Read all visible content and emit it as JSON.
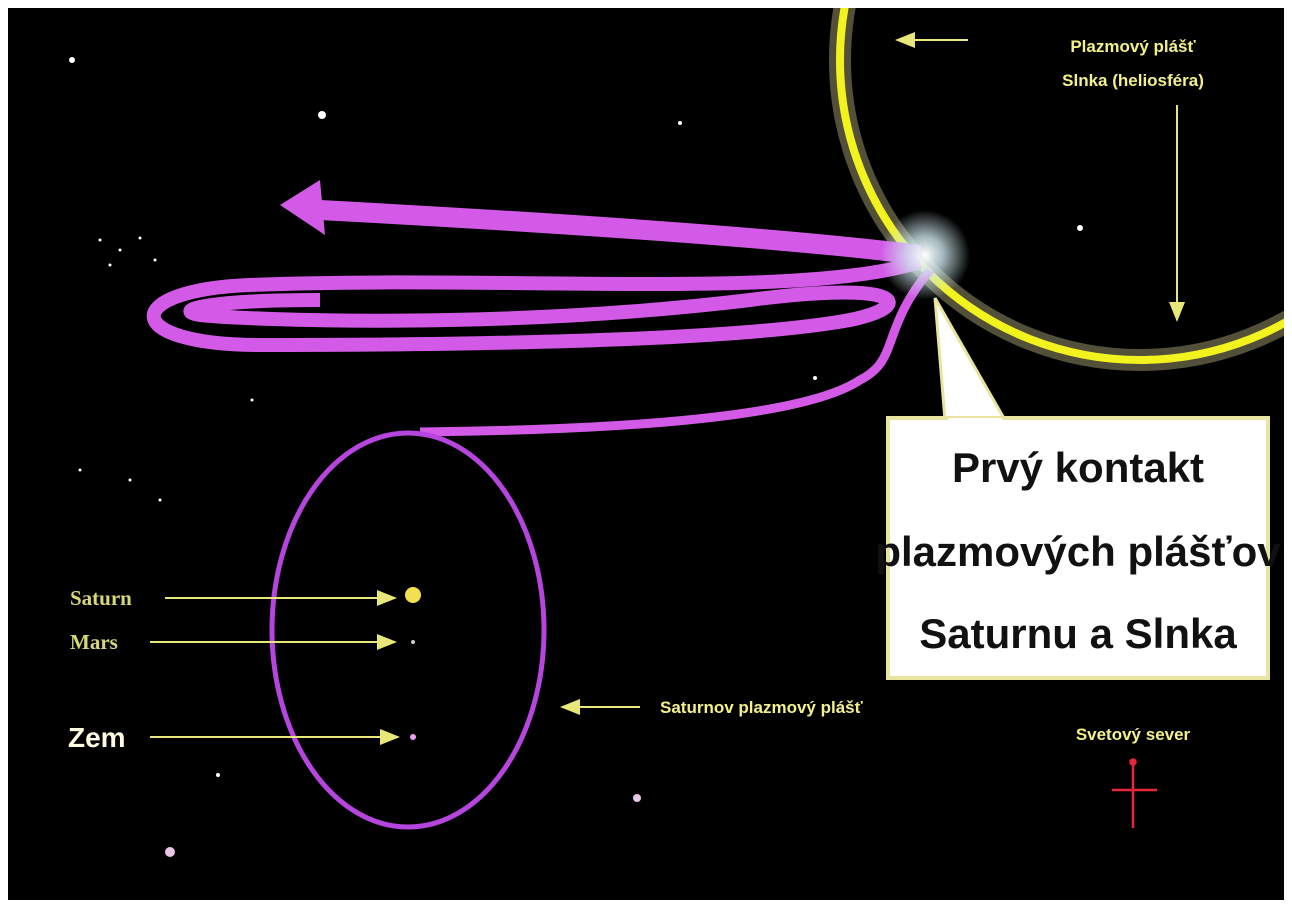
{
  "heliosphere_label": {
    "lines": [
      "Plazmový plášť",
      "Slnka (heliosféra)"
    ]
  },
  "callout": {
    "lines": [
      "Prvý kontakt",
      "plazmových plášťov",
      "Saturnu a Slnka"
    ]
  },
  "saturn_sheath_label": "Saturnov plazmový plášť",
  "bodies": [
    {
      "label": "Saturn"
    },
    {
      "label": "Mars"
    },
    {
      "label": "Zem"
    }
  ],
  "north_label": "Svetový sever"
}
